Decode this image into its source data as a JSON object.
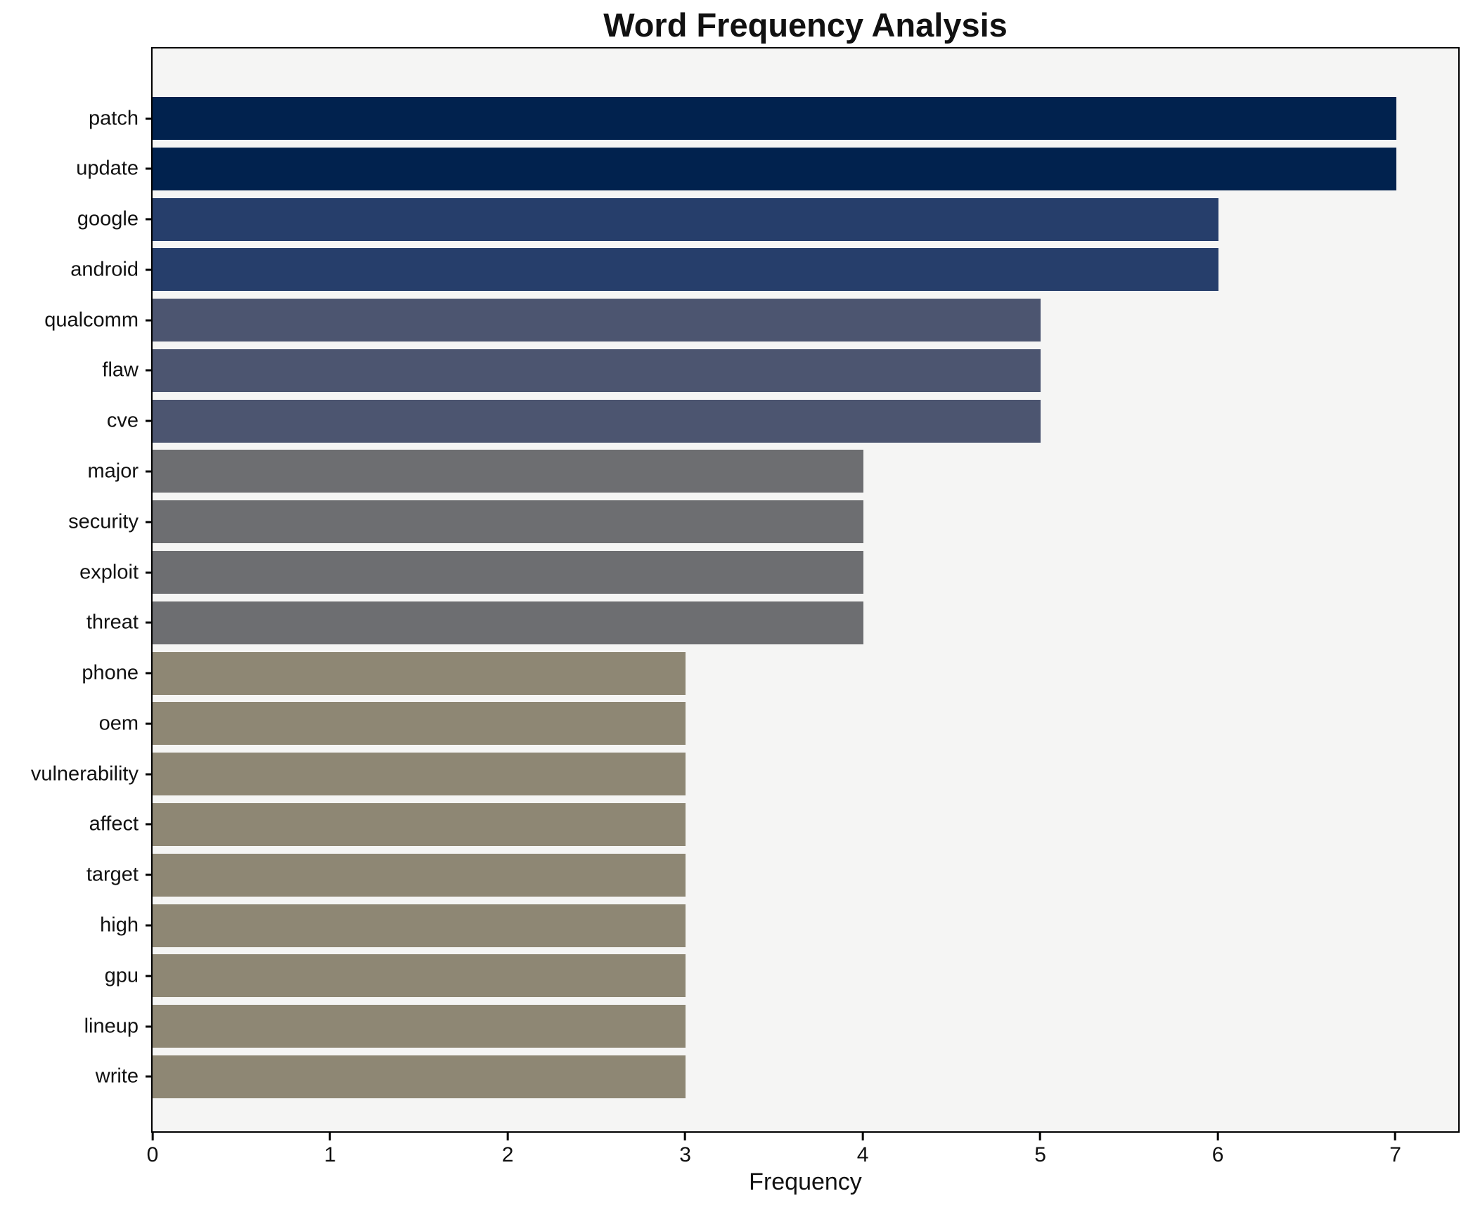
{
  "figure": {
    "background": "#ffffff",
    "plot_background": "#f5f5f4",
    "spine_color": "#000000",
    "text_color": "#111111"
  },
  "chart_data": {
    "type": "bar",
    "orientation": "horizontal",
    "title": "Word Frequency Analysis",
    "xlabel": "Frequency",
    "ylabel": "",
    "categories": [
      "patch",
      "update",
      "google",
      "android",
      "qualcomm",
      "flaw",
      "cve",
      "major",
      "security",
      "exploit",
      "threat",
      "phone",
      "oem",
      "vulnerability",
      "affect",
      "target",
      "high",
      "gpu",
      "lineup",
      "write"
    ],
    "values": [
      7,
      7,
      6,
      6,
      5,
      5,
      5,
      4,
      4,
      4,
      4,
      3,
      3,
      3,
      3,
      3,
      3,
      3,
      3,
      3
    ],
    "xlim": [
      0,
      7.35
    ],
    "xticks": [
      0,
      1,
      2,
      3,
      4,
      5,
      6,
      7
    ],
    "grid": false,
    "legend": "none",
    "bar_colors_by_value": {
      "7": "#01224e",
      "6": "#263e6b",
      "5": "#4c5570",
      "4": "#6d6e71",
      "3": "#8e8774"
    }
  }
}
